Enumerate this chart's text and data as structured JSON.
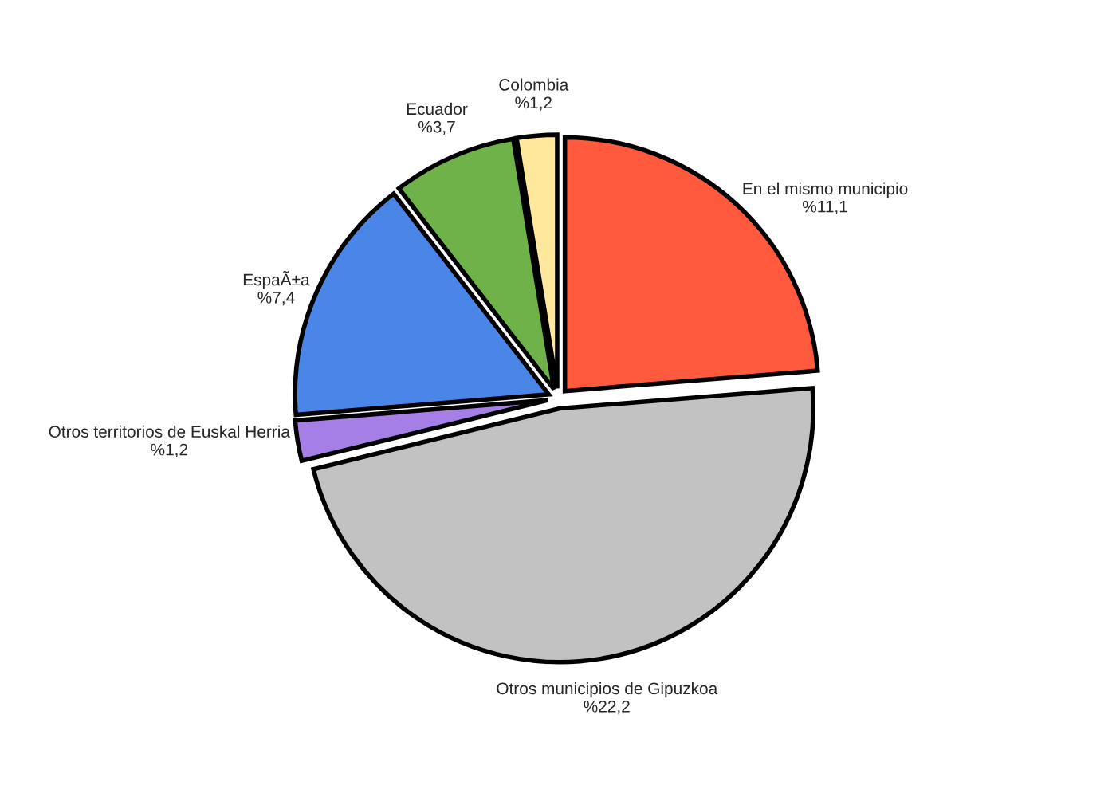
{
  "chart_data": {
    "type": "pie",
    "categories": [
      "En el mismo municipio",
      "Otros municipios de Gipuzkoa",
      "Otros territorios de Euskal Herria",
      "EspaÃ±a",
      "Ecuador",
      "Colombia"
    ],
    "values": [
      11.1,
      22.2,
      1.2,
      7.4,
      3.7,
      1.2
    ],
    "value_labels": [
      "%11,1",
      "%22,2",
      "%1,2",
      "%7,4",
      "%3,7",
      "%1,2"
    ],
    "colors": [
      "#ff5a3e",
      "#c2c2c2",
      "#a57ee6",
      "#4a86e8",
      "#6fb24a",
      "#ffe89c"
    ]
  }
}
